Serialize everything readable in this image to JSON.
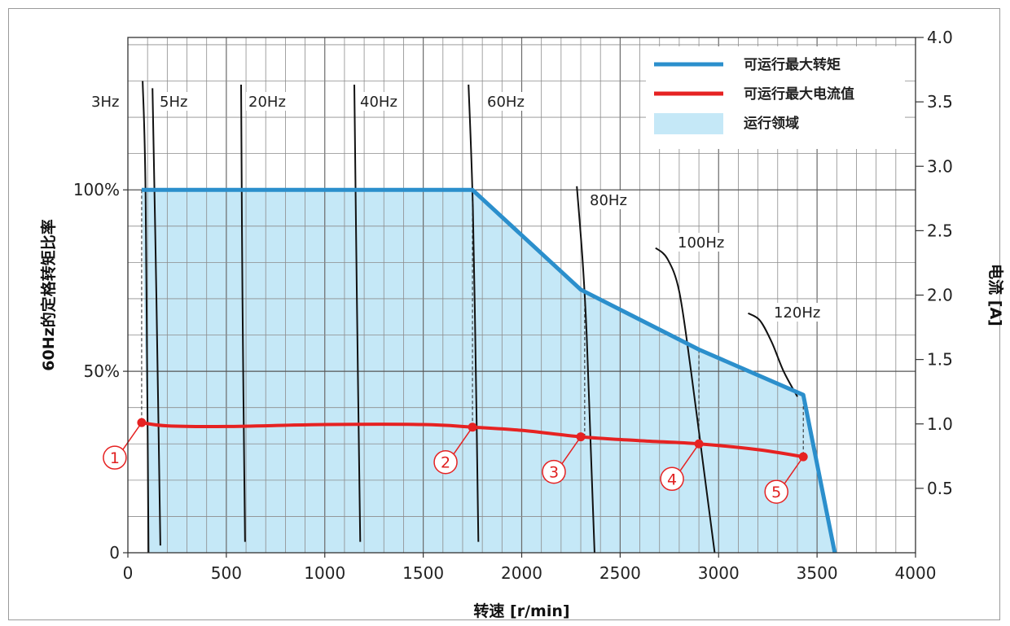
{
  "chart_data": {
    "type": "line",
    "x_axis": {
      "label": "转速 [r/min]",
      "range": [
        0,
        4000
      ],
      "ticks": [
        0,
        500,
        1000,
        1500,
        2000,
        2500,
        3000,
        3500,
        4000
      ],
      "tick_labels": [
        "0",
        "500",
        "1000",
        "1500",
        "2000",
        "2500",
        "3000",
        "3500",
        "4000"
      ],
      "minor_step": 100
    },
    "y_left_axis": {
      "label": "60Hz的定格转矩比率",
      "range_percent": [
        0,
        142
      ],
      "ticks": [
        0,
        50,
        100
      ],
      "tick_labels": [
        "0",
        "50%",
        "100%"
      ],
      "minor_step_percent": 10
    },
    "y_right_axis": {
      "label": "电流 [A]",
      "range": [
        0,
        4.0
      ],
      "ticks": [
        0.5,
        1.0,
        1.5,
        2.0,
        2.5,
        3.0,
        3.5,
        4.0
      ],
      "tick_labels": [
        "0.5",
        "1.0",
        "1.5",
        "2.0",
        "2.5",
        "3.0",
        "3.5",
        "4.0"
      ]
    },
    "grid": true,
    "legend": {
      "position": "top-right",
      "entries": [
        {
          "label": "可运行最大转矩",
          "color": "#2b8fcc",
          "kind": "line"
        },
        {
          "label": "可运行最大电流值",
          "color": "#e62222",
          "kind": "line"
        },
        {
          "label": "运行领域",
          "color": "#c5e8f7",
          "kind": "area"
        }
      ]
    },
    "series": [
      {
        "name": "可运行最大转矩",
        "axis": "left_percent",
        "color": "#2b8fcc",
        "x": [
          70,
          1750,
          2300,
          2900,
          3430,
          3590
        ],
        "y": [
          100,
          100,
          72.5,
          56,
          43.5,
          0
        ]
      },
      {
        "name": "可运行最大电流值",
        "axis": "right_amps",
        "color": "#e62222",
        "x": [
          70,
          200,
          500,
          1000,
          1500,
          1750,
          2000,
          2300,
          2600,
          2900,
          3200,
          3430
        ],
        "y": [
          1.01,
          0.985,
          0.98,
          0.995,
          0.995,
          0.975,
          0.95,
          0.9,
          0.87,
          0.845,
          0.8,
          0.745
        ]
      }
    ],
    "operating_region": {
      "name": "运行领域",
      "color": "#c5e8f7",
      "boundary_x": [
        70,
        1750,
        2300,
        2900,
        3430,
        3590,
        110
      ],
      "boundary_y": [
        100,
        100,
        72.5,
        56,
        43.5,
        0,
        0
      ]
    },
    "frequency_curves": [
      {
        "label": "3Hz",
        "points": [
          [
            75,
            130
          ],
          [
            90,
            98
          ],
          [
            105,
            0
          ]
        ]
      },
      {
        "label": "5Hz",
        "points": [
          [
            125,
            128
          ],
          [
            145,
            70
          ],
          [
            165,
            2
          ]
        ]
      },
      {
        "label": "20Hz",
        "points": [
          [
            575,
            129
          ],
          [
            582,
            70
          ],
          [
            595,
            3
          ]
        ]
      },
      {
        "label": "40Hz",
        "points": [
          [
            1150,
            129
          ],
          [
            1163,
            70
          ],
          [
            1180,
            3
          ]
        ]
      },
      {
        "label": "60Hz",
        "points": [
          [
            1730,
            129
          ],
          [
            1752,
            95
          ],
          [
            1770,
            40
          ],
          [
            1780,
            3
          ]
        ]
      },
      {
        "label": "80Hz",
        "points": [
          [
            2280,
            101
          ],
          [
            2310,
            80
          ],
          [
            2330,
            60
          ],
          [
            2350,
            30
          ],
          [
            2370,
            0
          ]
        ]
      },
      {
        "label": "100Hz",
        "points": [
          [
            2680,
            84
          ],
          [
            2740,
            81
          ],
          [
            2800,
            72
          ],
          [
            2860,
            50
          ],
          [
            2920,
            25
          ],
          [
            2980,
            0
          ]
        ]
      },
      {
        "label": "120Hz",
        "points": [
          [
            3150,
            66
          ],
          [
            3210,
            64
          ],
          [
            3270,
            58
          ],
          [
            3330,
            50
          ],
          [
            3400,
            43
          ]
        ]
      }
    ],
    "dashed_drop_lines": [
      {
        "x": 70,
        "from_percent": 100,
        "to_amps": 1.01
      },
      {
        "x": 1750,
        "from_percent": 100,
        "to_amps": 0.975
      },
      {
        "x": 2320,
        "from_percent": 72,
        "to_amps": 0.9
      },
      {
        "x": 2900,
        "from_percent": 56,
        "to_amps": 0.845
      },
      {
        "x": 3430,
        "from_percent": 43.5,
        "to_amps": 0.745
      }
    ],
    "annotations": [
      {
        "label": "①",
        "x": 70,
        "amps": 1.01
      },
      {
        "label": "②",
        "x": 1750,
        "amps": 0.975
      },
      {
        "label": "③",
        "x": 2300,
        "amps": 0.9
      },
      {
        "label": "④",
        "x": 2900,
        "amps": 0.845
      },
      {
        "label": "⑤",
        "x": 3430,
        "amps": 0.745
      }
    ]
  }
}
